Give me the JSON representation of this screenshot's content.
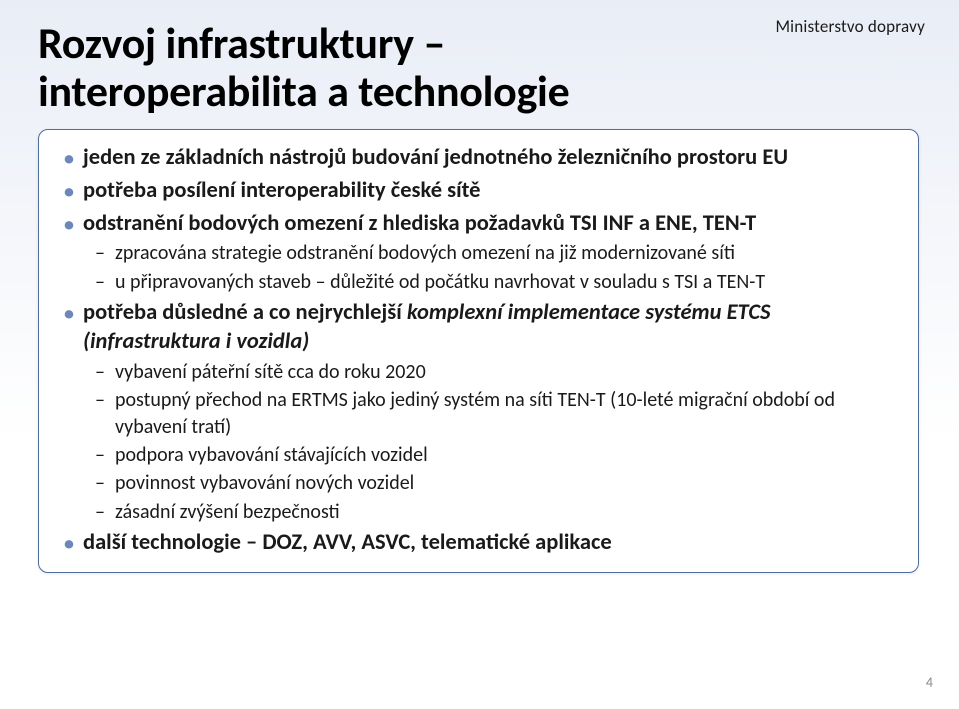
{
  "colors": {
    "background_gradient_top": "#e9edf6",
    "background_gradient_bottom": "#ffffff",
    "box_border": "#4f6d9b",
    "bullet_level1": "#6b88b8",
    "text": "#1a1a1a",
    "pagenum": "#8a8a8a"
  },
  "brand": "Ministerstvo dopravy",
  "title_line1": "Rozvoj infrastruktury –",
  "title_line2": "interoperabilita a technologie",
  "bullets": [
    {
      "text": "jeden ze základních nástrojů budování jednotného železničního prostoru EU"
    },
    {
      "text": "potřeba posílení interoperability české sítě"
    },
    {
      "text": "odstranění bodových omezení z hlediska požadavků TSI INF a ENE, TEN-T",
      "sub": [
        "zpracována strategie odstranění bodových omezení na již modernizované síti",
        "u připravovaných staveb – důležité od počátku navrhovat v souladu s TSI a TEN-T"
      ]
    },
    {
      "text_prefix": "potřeba důsledné a co nejrychlejší ",
      "text_italic": "komplexní implementace systému ETCS (infrastruktura i vozidla)",
      "sub": [
        "vybavení páteřní sítě cca do roku 2020",
        "postupný přechod na ERTMS jako jediný systém na síti TEN-T (10-leté migrační období od vybavení tratí)",
        "podpora vybavování stávajících vozidel",
        "povinnost vybavování nových vozidel",
        "zásadní zvýšení bezpečnosti"
      ]
    },
    {
      "text": "další technologie – DOZ, AVV, ASVC, telematické aplikace"
    }
  ],
  "page_number": "4"
}
